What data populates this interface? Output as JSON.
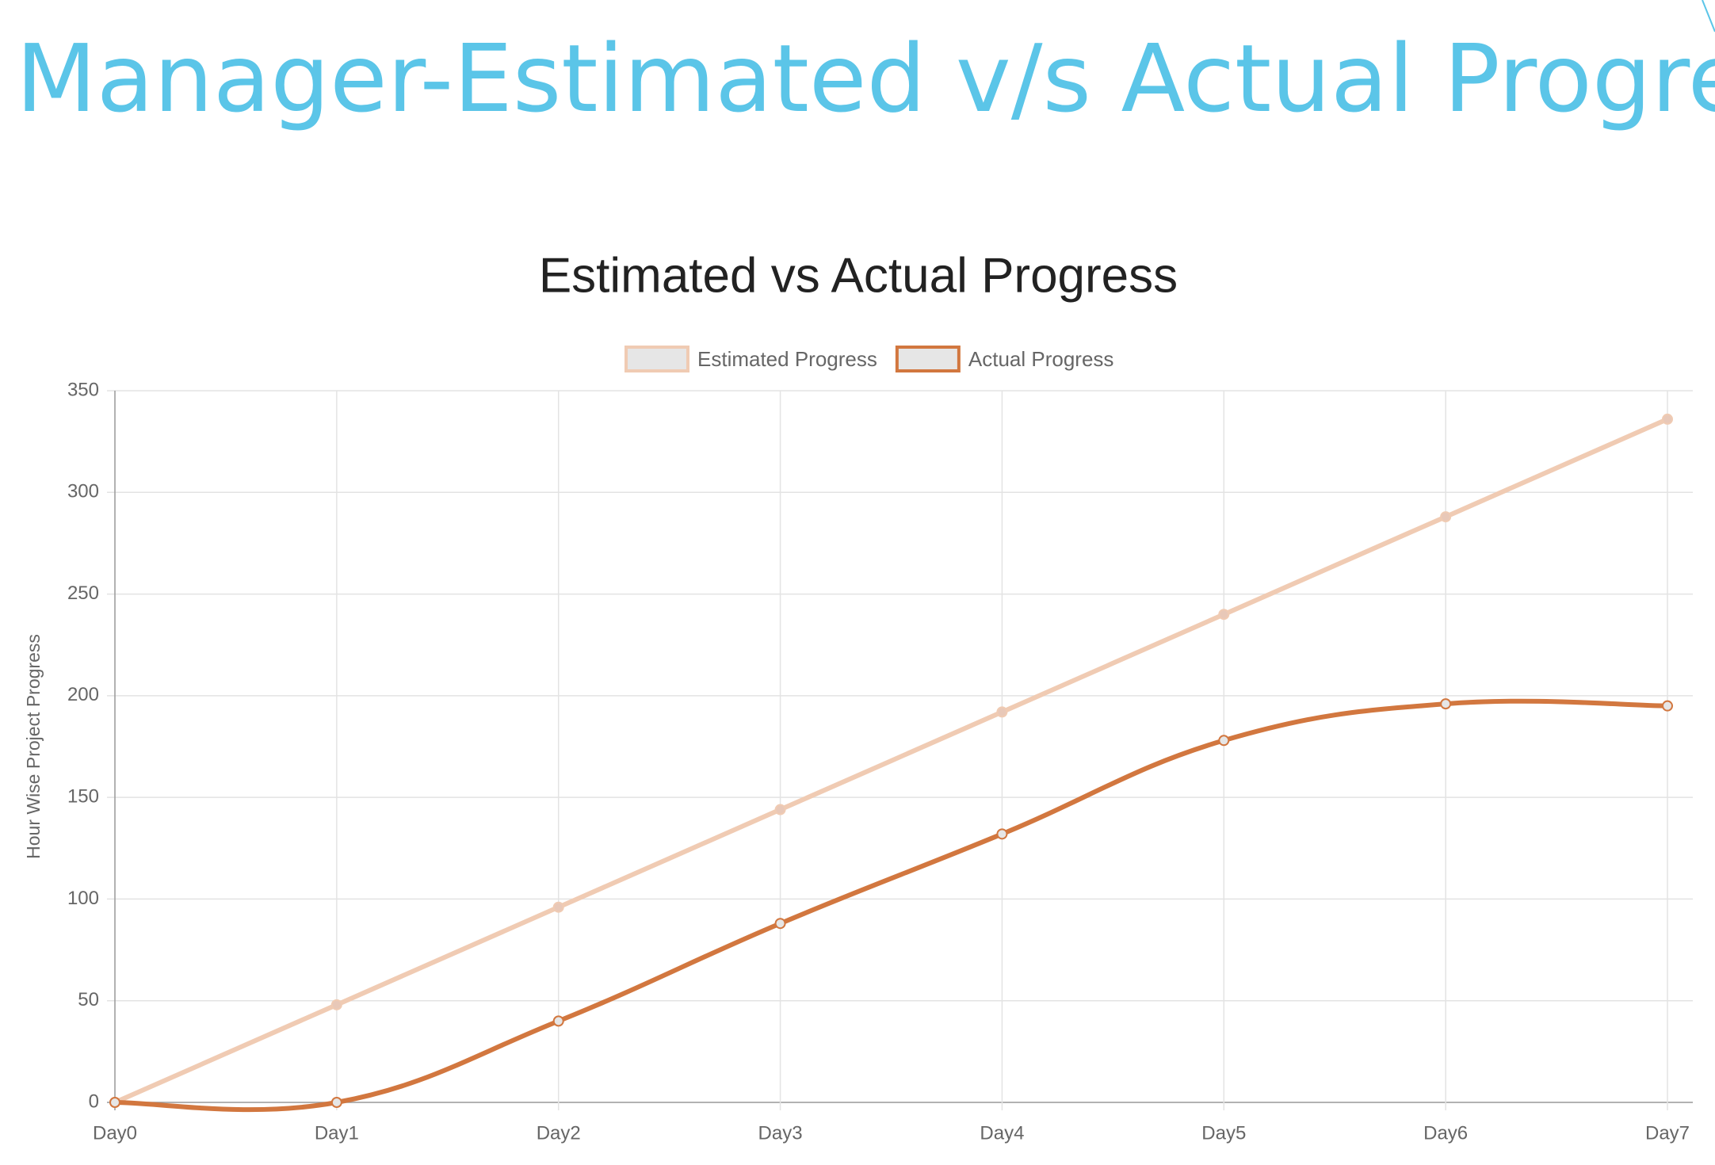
{
  "page_title": "Manager-Estimated v/s Actual Progress",
  "chart_data": {
    "type": "line",
    "title": "Estimated vs Actual Progress",
    "y_label": "Hour Wise Project Progress",
    "categories": [
      "Day0",
      "Day1",
      "Day2",
      "Day3",
      "Day4",
      "Day5",
      "Day6",
      "Day7"
    ],
    "series": [
      {
        "name": "Estimated Progress",
        "color": "#f0cbb3",
        "values": [
          0,
          48,
          96,
          144,
          192,
          240,
          288,
          336
        ]
      },
      {
        "name": "Actual Progress",
        "color": "#d2773f",
        "values": [
          0,
          0,
          40,
          88,
          132,
          178,
          196,
          195
        ]
      }
    ],
    "ylim": [
      0,
      350
    ],
    "yticks": [
      0,
      50,
      100,
      150,
      200,
      250,
      300,
      350
    ],
    "grid": true,
    "legend": "top"
  }
}
